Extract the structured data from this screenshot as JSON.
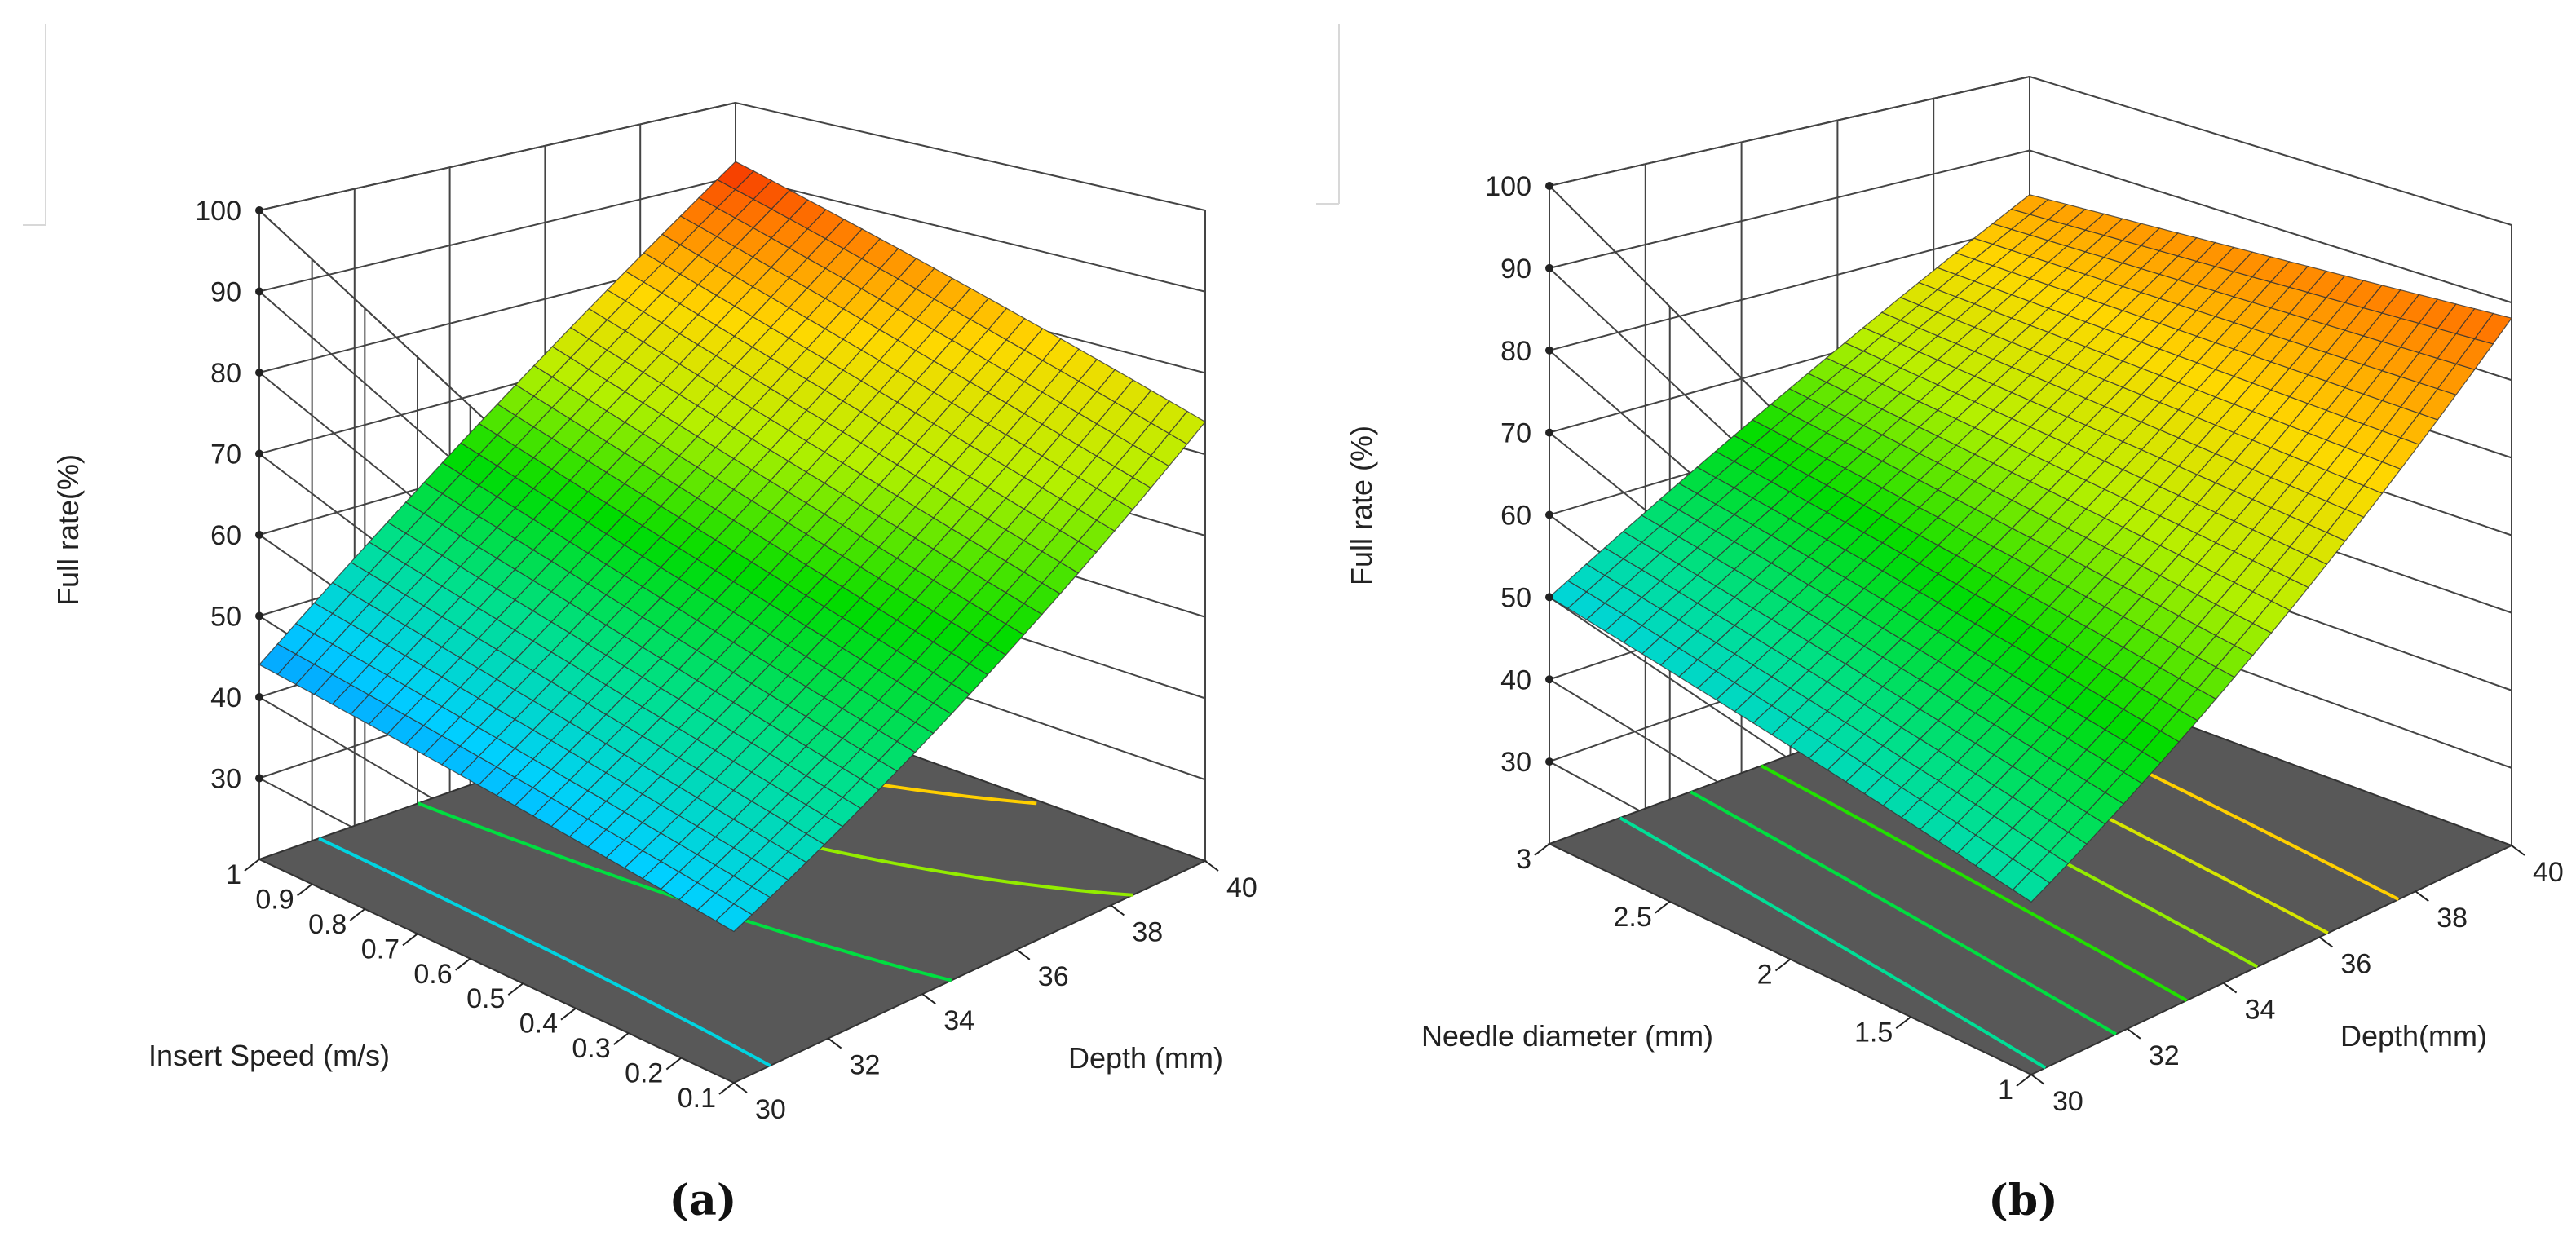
{
  "figure": {
    "panels": [
      {
        "caption": "(a)"
      },
      {
        "caption": "(b)"
      }
    ]
  },
  "chart_data": [
    {
      "type": "surface",
      "caption": "(a)",
      "zlabel": "Full rate(%)",
      "xlabel": "Depth (mm)",
      "ylabel": "Insert Speed (m/s)",
      "zlim": [
        20,
        100
      ],
      "zticks": [
        "30",
        "40",
        "50",
        "60",
        "70",
        "80",
        "90",
        "100"
      ],
      "xlim": [
        30,
        40
      ],
      "xticks": [
        "30",
        "32",
        "34",
        "36",
        "38",
        "40"
      ],
      "ylim": [
        0.1,
        1
      ],
      "yticks": [
        "0.1",
        "0.2",
        "0.3",
        "0.4",
        "0.5",
        "0.6",
        "0.7",
        "0.8",
        "0.9",
        "1"
      ],
      "corner_values": {
        "depth30_speed1": 44,
        "depth30_speed0.1": 48,
        "depth40_speed1": 92,
        "depth40_speed0.1": 74
      },
      "contour_levels": [
        50,
        60,
        70,
        80,
        90
      ],
      "colormap": [
        "#0a6cff",
        "#00d0ff",
        "#00e08c",
        "#00dc00",
        "#b4f000",
        "#ffd800",
        "#ff7a00",
        "#ee0000"
      ],
      "colormap_range": [
        40,
        95
      ],
      "floor_color": "#585858"
    },
    {
      "type": "surface",
      "caption": "(b)",
      "zlabel": "Full rate (%)",
      "xlabel": "Depth(mm)",
      "ylabel": "Needle diameter (mm)",
      "zlim": [
        20,
        100
      ],
      "zticks": [
        "30",
        "40",
        "50",
        "60",
        "70",
        "80",
        "90",
        "100"
      ],
      "xlim": [
        30,
        40
      ],
      "xticks": [
        "30",
        "32",
        "34",
        "36",
        "38",
        "40"
      ],
      "ylim": [
        1,
        3
      ],
      "yticks": [
        "1",
        "1.5",
        "2",
        "2.5",
        "3"
      ],
      "corner_values": {
        "depth30_needle3": 50,
        "depth30_needle1": 54,
        "depth40_needle3": 84,
        "depth40_needle1": 88
      },
      "contour_levels": [
        55,
        60,
        65,
        70,
        75,
        80
      ],
      "colormap": [
        "#0a6cff",
        "#00d0ff",
        "#00e08c",
        "#00dc00",
        "#b4f000",
        "#ffd800",
        "#ff7a00",
        "#ee0000"
      ],
      "colormap_range": [
        40,
        95
      ],
      "floor_color": "#585858"
    }
  ]
}
